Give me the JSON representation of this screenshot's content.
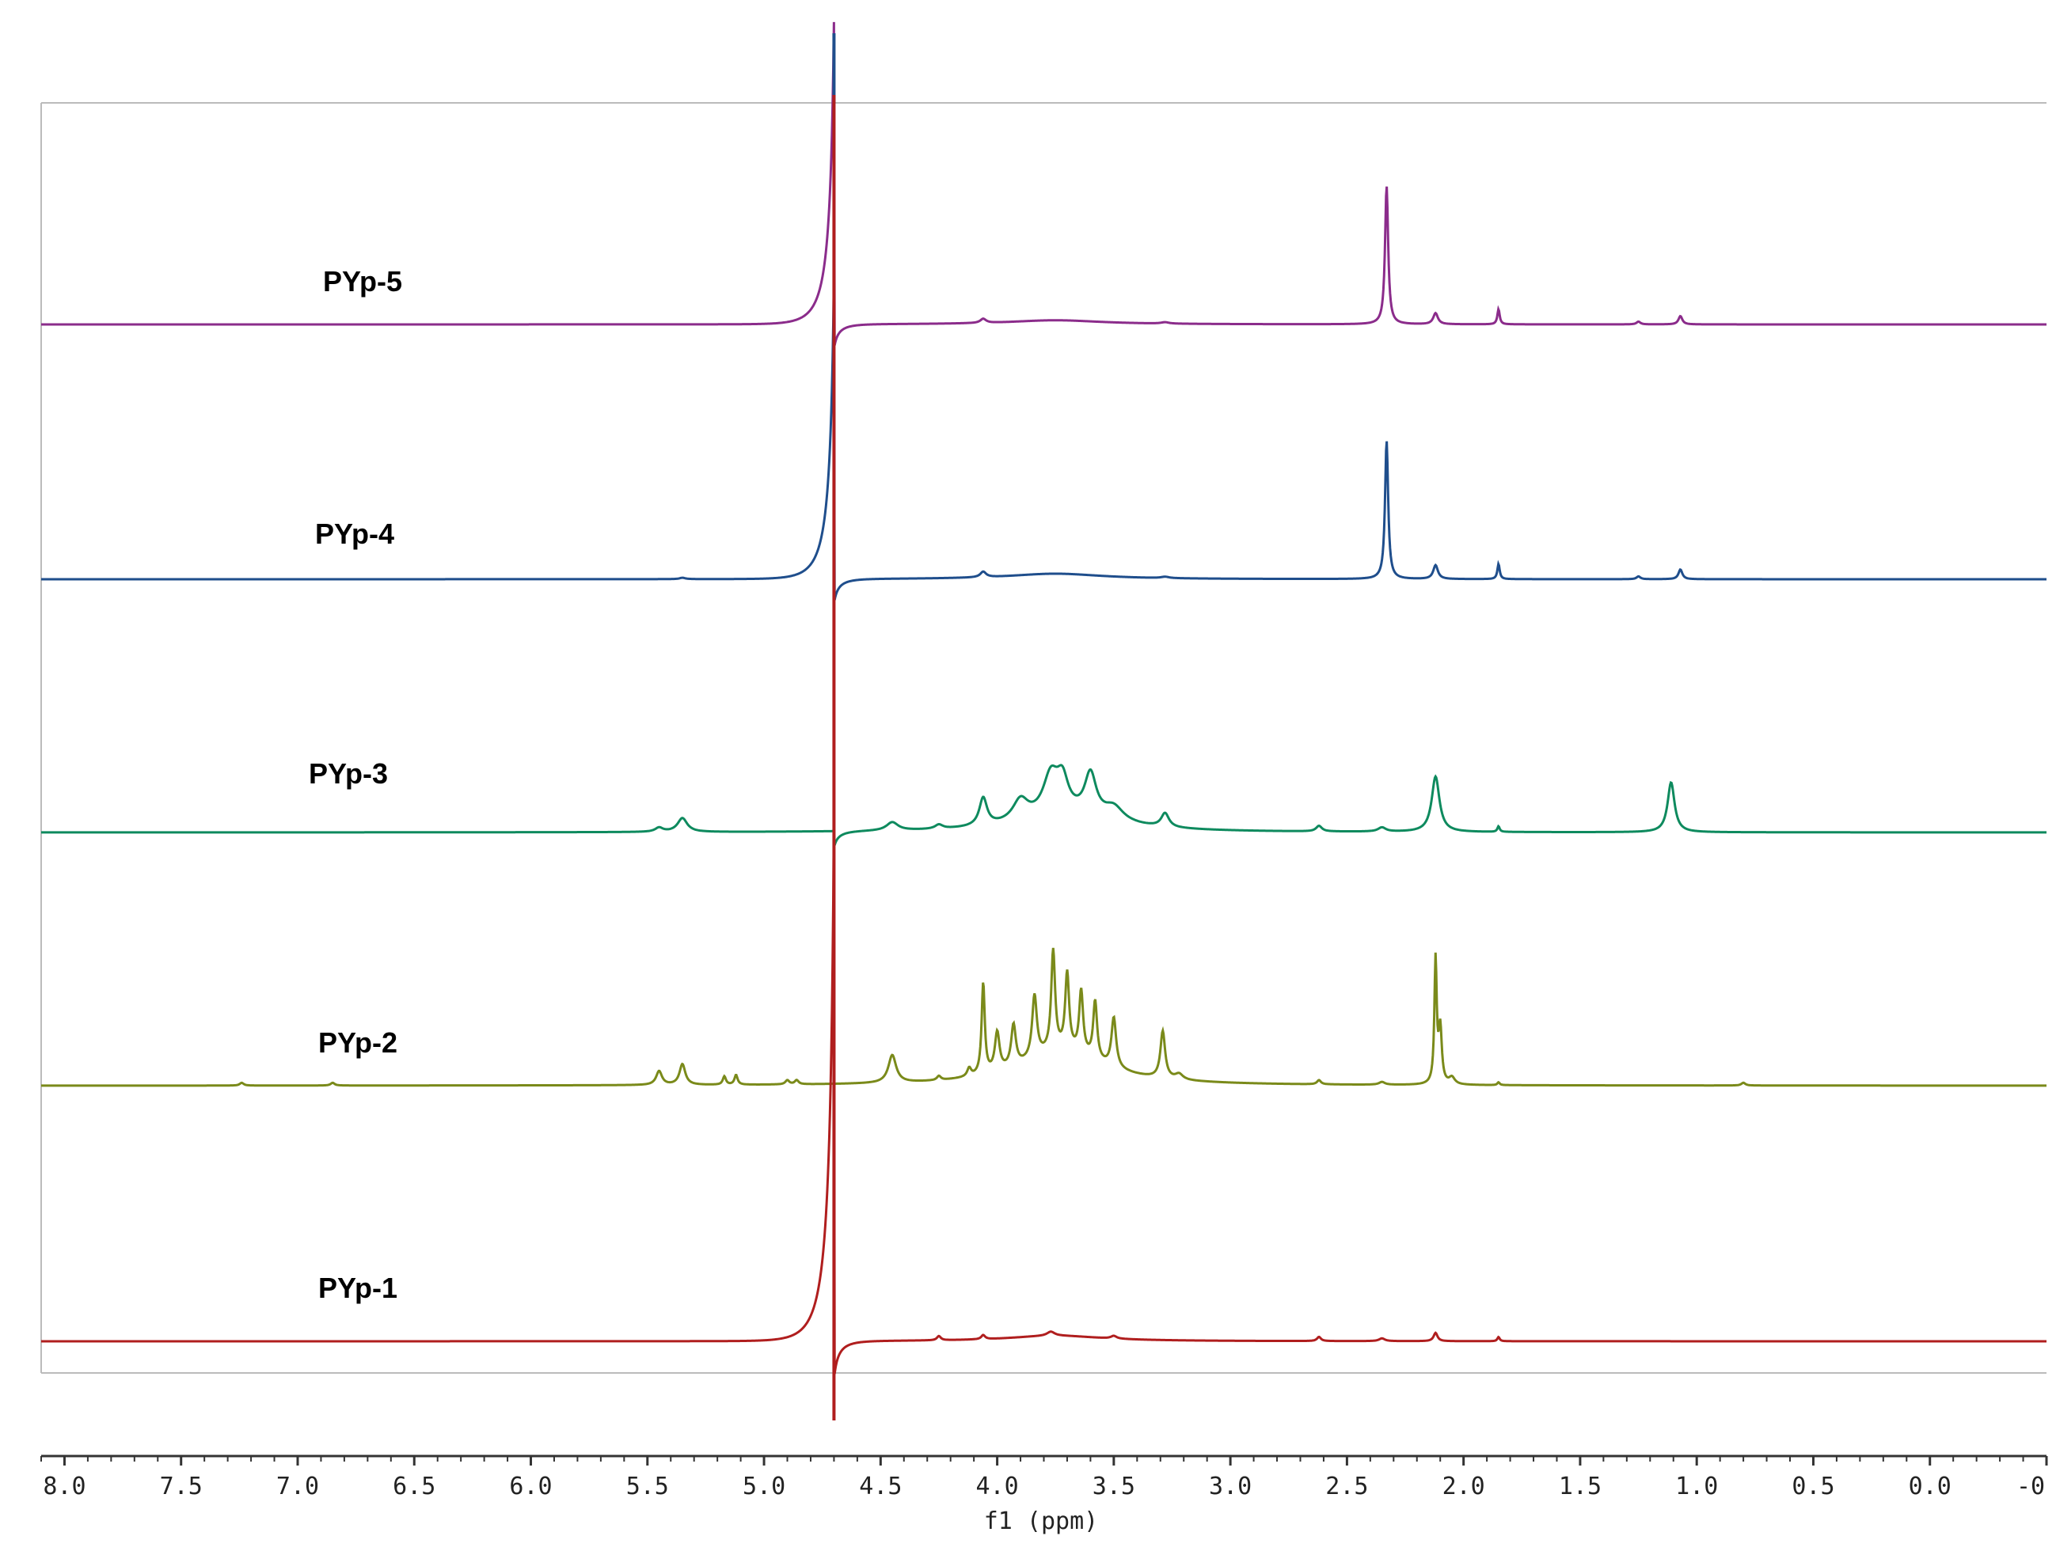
{
  "chart_data": {
    "type": "line",
    "xlabel": "f1 (ppm)",
    "x_reversed": true,
    "xlim": [
      8.1,
      -0.5
    ],
    "x_ticks": [
      {
        "value": 8.0,
        "label": "8.0"
      },
      {
        "value": 7.5,
        "label": "7.5"
      },
      {
        "value": 7.0,
        "label": "7.0"
      },
      {
        "value": 6.5,
        "label": "6.5"
      },
      {
        "value": 6.0,
        "label": "6.0"
      },
      {
        "value": 5.5,
        "label": "5.5"
      },
      {
        "value": 5.0,
        "label": "5.0"
      },
      {
        "value": 4.5,
        "label": "4.5"
      },
      {
        "value": 4.0,
        "label": "4.0"
      },
      {
        "value": 3.5,
        "label": "3.5"
      },
      {
        "value": 3.0,
        "label": "3.0"
      },
      {
        "value": 2.5,
        "label": "2.5"
      },
      {
        "value": 2.0,
        "label": "2.0"
      },
      {
        "value": 1.5,
        "label": "1.5"
      },
      {
        "value": 1.0,
        "label": "1.0"
      },
      {
        "value": 0.5,
        "label": "0.5"
      },
      {
        "value": 0.0,
        "label": "0.0"
      },
      {
        "value": -0.5,
        "label": "-0"
      }
    ],
    "solvent_peak_ppm": 4.7,
    "series": [
      {
        "name": "PYp-5",
        "color": "#8B2C8B",
        "dispersion": {
          "ppm": 4.7,
          "pos": 2.2,
          "neg": 0.18
        },
        "peaks": [
          {
            "ppm": 2.33,
            "height": 1.0,
            "width": 0.008
          },
          {
            "ppm": 2.12,
            "height": 0.08,
            "width": 0.012
          },
          {
            "ppm": 1.85,
            "height": 0.11,
            "width": 0.006
          },
          {
            "ppm": 1.25,
            "height": 0.02,
            "width": 0.01
          },
          {
            "ppm": 1.07,
            "height": 0.06,
            "width": 0.01
          },
          {
            "ppm": 4.06,
            "height": 0.03,
            "width": 0.015
          },
          {
            "ppm": 3.28,
            "height": 0.01,
            "width": 0.02
          },
          {
            "ppm": 3.75,
            "height": 0.03,
            "width": 0.25
          }
        ]
      },
      {
        "name": "PYp-4",
        "color": "#1F4E8C",
        "dispersion": {
          "ppm": 4.7,
          "pos": 2.2,
          "neg": 0.18
        },
        "peaks": [
          {
            "ppm": 2.33,
            "height": 1.0,
            "width": 0.008
          },
          {
            "ppm": 2.12,
            "height": 0.1,
            "width": 0.012
          },
          {
            "ppm": 1.85,
            "height": 0.11,
            "width": 0.006
          },
          {
            "ppm": 1.25,
            "height": 0.02,
            "width": 0.01
          },
          {
            "ppm": 1.07,
            "height": 0.07,
            "width": 0.01
          },
          {
            "ppm": 4.06,
            "height": 0.04,
            "width": 0.015
          },
          {
            "ppm": 5.35,
            "height": 0.01,
            "width": 0.015
          },
          {
            "ppm": 3.28,
            "height": 0.01,
            "width": 0.02
          },
          {
            "ppm": 3.75,
            "height": 0.04,
            "width": 0.25
          }
        ]
      },
      {
        "name": "PYp-3",
        "color": "#0E8A5E",
        "dispersion": {
          "ppm": 4.7,
          "pos": 0.0,
          "neg": 0.12
        },
        "peaks": [
          {
            "ppm": 5.35,
            "height": 0.1,
            "width": 0.025
          },
          {
            "ppm": 5.45,
            "height": 0.03,
            "width": 0.02
          },
          {
            "ppm": 4.45,
            "height": 0.06,
            "width": 0.03
          },
          {
            "ppm": 4.25,
            "height": 0.03,
            "width": 0.02
          },
          {
            "ppm": 4.06,
            "height": 0.2,
            "width": 0.02
          },
          {
            "ppm": 3.9,
            "height": 0.15,
            "width": 0.04
          },
          {
            "ppm": 3.77,
            "height": 0.28,
            "width": 0.04
          },
          {
            "ppm": 3.72,
            "height": 0.22,
            "width": 0.03
          },
          {
            "ppm": 3.6,
            "height": 0.3,
            "width": 0.03
          },
          {
            "ppm": 3.5,
            "height": 0.1,
            "width": 0.05
          },
          {
            "ppm": 3.7,
            "height": 0.12,
            "width": 0.25
          },
          {
            "ppm": 3.28,
            "height": 0.1,
            "width": 0.02
          },
          {
            "ppm": 2.62,
            "height": 0.04,
            "width": 0.015
          },
          {
            "ppm": 2.35,
            "height": 0.03,
            "width": 0.02
          },
          {
            "ppm": 2.12,
            "height": 0.4,
            "width": 0.02
          },
          {
            "ppm": 1.85,
            "height": 0.04,
            "width": 0.006
          },
          {
            "ppm": 1.11,
            "height": 0.36,
            "width": 0.018
          }
        ]
      },
      {
        "name": "PYp-2",
        "color": "#7A8A1A",
        "dispersion": {
          "ppm": 4.7,
          "pos": 0.0,
          "neg": 0.0
        },
        "peaks": [
          {
            "ppm": 7.24,
            "height": 0.02,
            "width": 0.01
          },
          {
            "ppm": 6.85,
            "height": 0.02,
            "width": 0.01
          },
          {
            "ppm": 5.45,
            "height": 0.1,
            "width": 0.015
          },
          {
            "ppm": 5.35,
            "height": 0.15,
            "width": 0.015
          },
          {
            "ppm": 5.17,
            "height": 0.06,
            "width": 0.008
          },
          {
            "ppm": 5.12,
            "height": 0.07,
            "width": 0.008
          },
          {
            "ppm": 4.9,
            "height": 0.03,
            "width": 0.01
          },
          {
            "ppm": 4.86,
            "height": 0.03,
            "width": 0.01
          },
          {
            "ppm": 4.45,
            "height": 0.2,
            "width": 0.02
          },
          {
            "ppm": 4.25,
            "height": 0.03,
            "width": 0.01
          },
          {
            "ppm": 4.12,
            "height": 0.06,
            "width": 0.01
          },
          {
            "ppm": 4.06,
            "height": 0.66,
            "width": 0.008
          },
          {
            "ppm": 4.0,
            "height": 0.28,
            "width": 0.012
          },
          {
            "ppm": 3.93,
            "height": 0.3,
            "width": 0.012
          },
          {
            "ppm": 3.84,
            "height": 0.45,
            "width": 0.012
          },
          {
            "ppm": 3.76,
            "height": 0.72,
            "width": 0.01
          },
          {
            "ppm": 3.7,
            "height": 0.55,
            "width": 0.01
          },
          {
            "ppm": 3.64,
            "height": 0.45,
            "width": 0.01
          },
          {
            "ppm": 3.58,
            "height": 0.42,
            "width": 0.01
          },
          {
            "ppm": 3.5,
            "height": 0.36,
            "width": 0.012
          },
          {
            "ppm": 3.72,
            "height": 0.25,
            "width": 0.22
          },
          {
            "ppm": 3.29,
            "height": 0.34,
            "width": 0.012
          },
          {
            "ppm": 3.22,
            "height": 0.04,
            "width": 0.02
          },
          {
            "ppm": 2.62,
            "height": 0.03,
            "width": 0.01
          },
          {
            "ppm": 2.35,
            "height": 0.02,
            "width": 0.015
          },
          {
            "ppm": 2.12,
            "height": 0.9,
            "width": 0.006
          },
          {
            "ppm": 2.1,
            "height": 0.4,
            "width": 0.008
          },
          {
            "ppm": 2.05,
            "height": 0.05,
            "width": 0.015
          },
          {
            "ppm": 1.85,
            "height": 0.02,
            "width": 0.006
          },
          {
            "ppm": 0.8,
            "height": 0.02,
            "width": 0.01
          }
        ]
      },
      {
        "name": "PYp-1",
        "color": "#B01E1E",
        "dispersion": {
          "ppm": 4.7,
          "pos": 3.8,
          "neg": 0.28
        },
        "peaks": [
          {
            "ppm": 4.25,
            "height": 0.03,
            "width": 0.01
          },
          {
            "ppm": 4.06,
            "height": 0.03,
            "width": 0.01
          },
          {
            "ppm": 3.75,
            "height": 0.04,
            "width": 0.25
          },
          {
            "ppm": 3.77,
            "height": 0.03,
            "width": 0.02
          },
          {
            "ppm": 3.5,
            "height": 0.02,
            "width": 0.015
          },
          {
            "ppm": 2.62,
            "height": 0.03,
            "width": 0.01
          },
          {
            "ppm": 2.35,
            "height": 0.02,
            "width": 0.015
          },
          {
            "ppm": 2.12,
            "height": 0.06,
            "width": 0.01
          },
          {
            "ppm": 1.85,
            "height": 0.03,
            "width": 0.006
          }
        ]
      }
    ]
  }
}
